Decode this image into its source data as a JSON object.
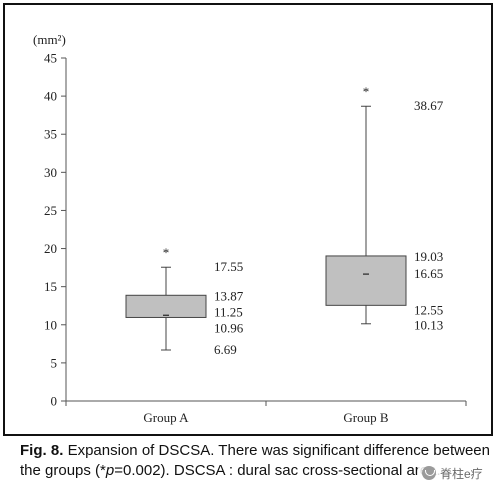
{
  "chart_data": {
    "type": "box",
    "y_unit": "(mm²)",
    "ylim": [
      0,
      45
    ],
    "y_ticks": [
      0,
      5,
      10,
      15,
      20,
      25,
      30,
      35,
      40,
      45
    ],
    "categories": [
      "Group A",
      "Group B"
    ],
    "boxes": [
      {
        "category": "Group A",
        "whisker_low": 6.69,
        "q1": 10.96,
        "median": 11.25,
        "q3": 13.87,
        "whisker_high": 17.55,
        "significance_marker": "*"
      },
      {
        "category": "Group B",
        "whisker_low": 10.13,
        "q1": 12.55,
        "median": 16.65,
        "q3": 19.03,
        "whisker_high": 38.67,
        "significance_marker": "*"
      }
    ],
    "box_fill": "#c0c0c0",
    "grid": false
  },
  "caption": {
    "label": "Fig. 8.",
    "text_before_p": " Expansion of DSCSA. There was significant difference between the groups (*",
    "p_symbol": "p",
    "text_after_p": "=0.002). DSCSA : dural sac cross-sectional area."
  },
  "watermark": {
    "text": "脊柱e疗",
    "icon": "wechat-icon"
  }
}
